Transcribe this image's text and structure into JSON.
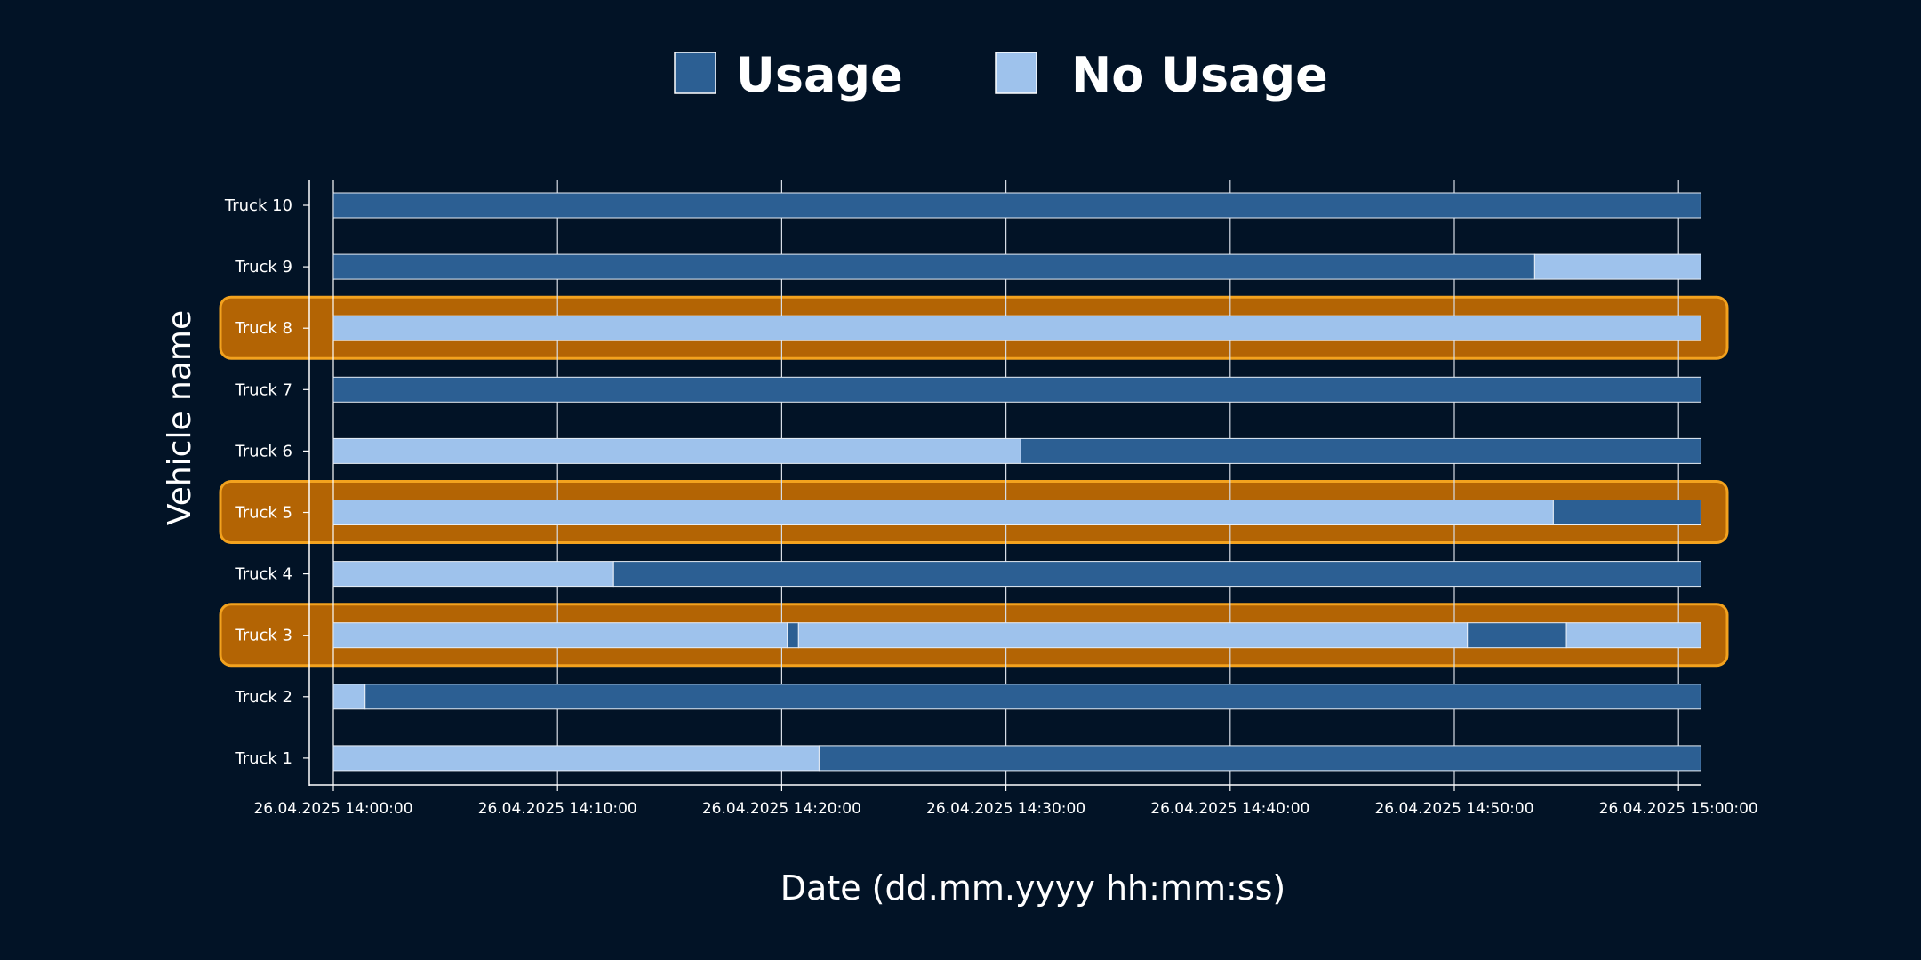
{
  "chart_data": {
    "type": "bar",
    "subtype": "horizontal-timeline",
    "title": "",
    "xlabel": "Date (dd.mm.yyyy hh:mm:ss)",
    "ylabel": "Vehicle name",
    "legend_placement": "top-center",
    "grid": true,
    "xlim": [
      "26.04.2025 14:00:00",
      "26.04.2025 15:01:00"
    ],
    "x_ticks": [
      "26.04.2025 14:00:00",
      "26.04.2025 14:10:00",
      "26.04.2025 14:20:00",
      "26.04.2025 14:30:00",
      "26.04.2025 14:40:00",
      "26.04.2025 14:50:00",
      "26.04.2025 15:00:00"
    ],
    "legend": [
      {
        "key": "usage",
        "label": "Usage",
        "color": "#2c5f93"
      },
      {
        "key": "no_usage",
        "label": "No Usage",
        "color": "#9ec2ec"
      }
    ],
    "highlighted_categories": [
      "Truck 8",
      "Truck 5",
      "Truck 3"
    ],
    "highlight_color": "#b36404",
    "highlight_border_color": "#f3a21e",
    "categories": [
      "Truck 10",
      "Truck 9",
      "Truck 8",
      "Truck 7",
      "Truck 6",
      "Truck 5",
      "Truck 4",
      "Truck 3",
      "Truck 2",
      "Truck 1"
    ],
    "series": [
      {
        "category": "Truck 10",
        "segments": [
          {
            "state": "usage",
            "start": "26.04.2025 14:00:00",
            "end": "26.04.2025 15:01:00"
          }
        ]
      },
      {
        "category": "Truck 9",
        "segments": [
          {
            "state": "usage",
            "start": "26.04.2025 14:00:00",
            "end": "26.04.2025 14:53:35"
          },
          {
            "state": "no_usage",
            "start": "26.04.2025 14:53:35",
            "end": "26.04.2025 15:01:00"
          }
        ]
      },
      {
        "category": "Truck 8",
        "segments": [
          {
            "state": "no_usage",
            "start": "26.04.2025 14:00:00",
            "end": "26.04.2025 15:01:00"
          }
        ]
      },
      {
        "category": "Truck 7",
        "segments": [
          {
            "state": "usage",
            "start": "26.04.2025 14:00:00",
            "end": "26.04.2025 15:01:00"
          }
        ]
      },
      {
        "category": "Truck 6",
        "segments": [
          {
            "state": "no_usage",
            "start": "26.04.2025 14:00:00",
            "end": "26.04.2025 14:30:40"
          },
          {
            "state": "usage",
            "start": "26.04.2025 14:30:40",
            "end": "26.04.2025 15:01:00"
          }
        ]
      },
      {
        "category": "Truck 5",
        "segments": [
          {
            "state": "no_usage",
            "start": "26.04.2025 14:00:00",
            "end": "26.04.2025 14:54:25"
          },
          {
            "state": "usage",
            "start": "26.04.2025 14:54:25",
            "end": "26.04.2025 15:01:00"
          }
        ]
      },
      {
        "category": "Truck 4",
        "segments": [
          {
            "state": "no_usage",
            "start": "26.04.2025 14:00:00",
            "end": "26.04.2025 14:12:30"
          },
          {
            "state": "usage",
            "start": "26.04.2025 14:12:30",
            "end": "26.04.2025 15:01:00"
          }
        ]
      },
      {
        "category": "Truck 3",
        "segments": [
          {
            "state": "no_usage",
            "start": "26.04.2025 14:00:00",
            "end": "26.04.2025 14:20:15"
          },
          {
            "state": "usage",
            "start": "26.04.2025 14:20:15",
            "end": "26.04.2025 14:20:45"
          },
          {
            "state": "no_usage",
            "start": "26.04.2025 14:20:45",
            "end": "26.04.2025 14:50:35"
          },
          {
            "state": "usage",
            "start": "26.04.2025 14:50:35",
            "end": "26.04.2025 14:55:00"
          },
          {
            "state": "no_usage",
            "start": "26.04.2025 14:55:00",
            "end": "26.04.2025 15:01:00"
          }
        ]
      },
      {
        "category": "Truck 2",
        "segments": [
          {
            "state": "no_usage",
            "start": "26.04.2025 14:00:00",
            "end": "26.04.2025 14:01:25"
          },
          {
            "state": "usage",
            "start": "26.04.2025 14:01:25",
            "end": "26.04.2025 15:01:00"
          }
        ]
      },
      {
        "category": "Truck 1",
        "segments": [
          {
            "state": "no_usage",
            "start": "26.04.2025 14:00:00",
            "end": "26.04.2025 14:21:40"
          },
          {
            "state": "usage",
            "start": "26.04.2025 14:21:40",
            "end": "26.04.2025 15:01:00"
          }
        ]
      }
    ]
  }
}
